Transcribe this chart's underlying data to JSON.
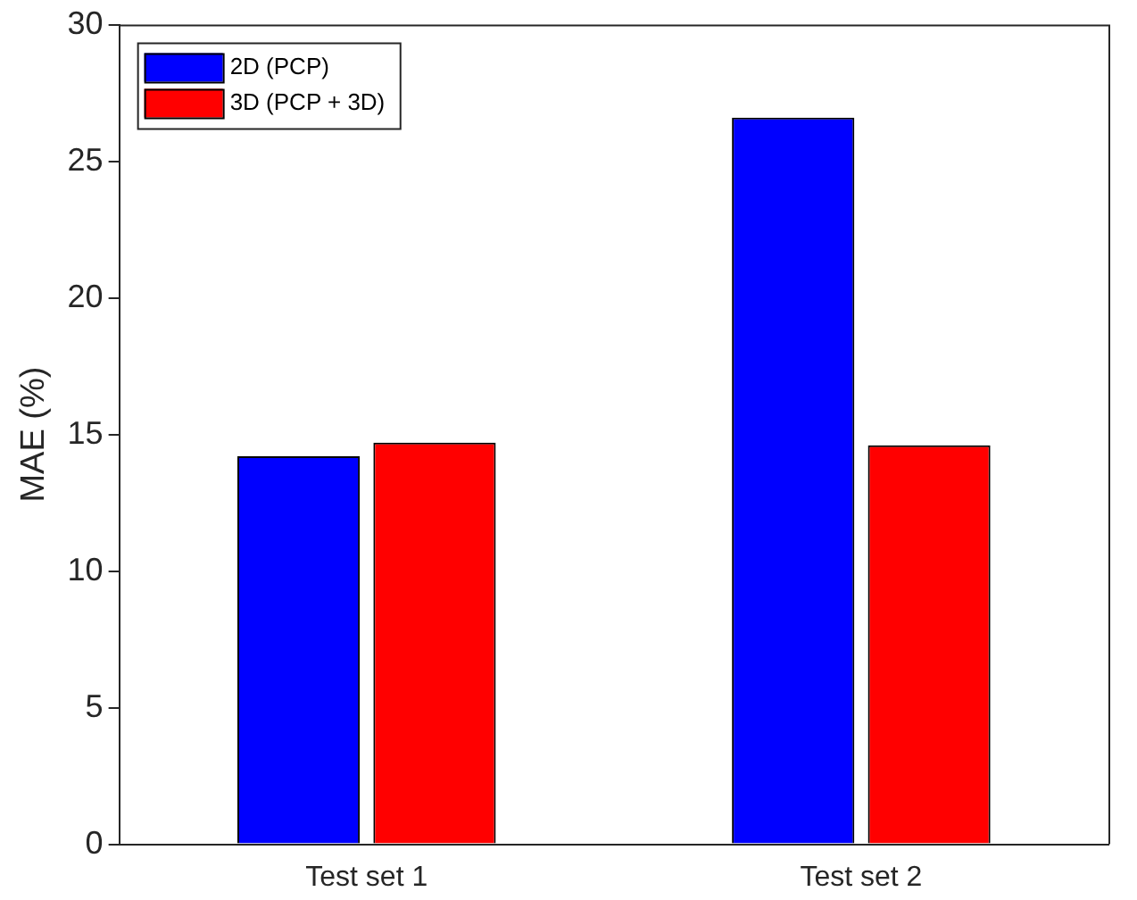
{
  "chart_data": {
    "type": "bar",
    "ylabel": "MAE (%)",
    "categories": [
      "Test set 1",
      "Test set 2"
    ],
    "series": [
      {
        "name": "2D (PCP)",
        "color": "#0000ff",
        "values": [
          14.2,
          26.6
        ]
      },
      {
        "name": "3D (PCP + 3D)",
        "color": "#ff0000",
        "values": [
          14.7,
          14.6
        ]
      }
    ],
    "ylim": [
      0,
      30
    ],
    "yticks": [
      0,
      5,
      10,
      15,
      20,
      25,
      30
    ],
    "grid": false,
    "legend": "top left"
  }
}
